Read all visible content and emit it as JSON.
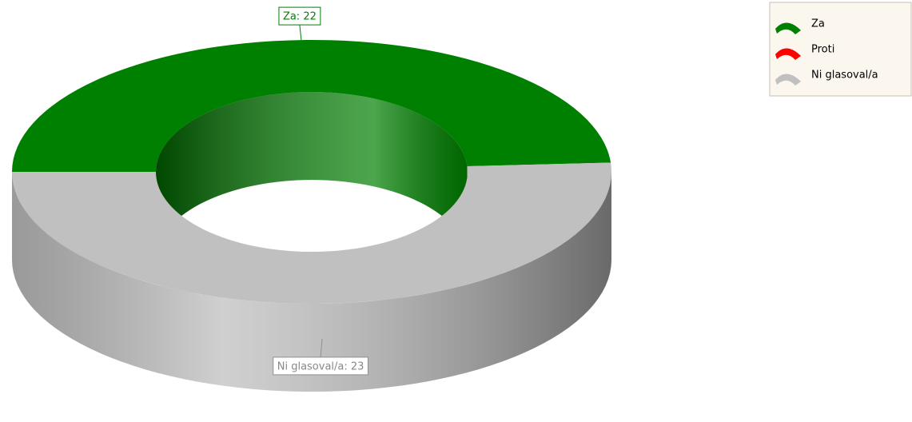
{
  "chart_data": {
    "type": "donut",
    "categories": [
      "Za",
      "Proti",
      "Ni glasoval/a"
    ],
    "values": [
      22,
      0,
      23
    ],
    "value_labels": [
      "Za: 22",
      null,
      "Ni glasoval/a: 23"
    ],
    "colors": [
      "#008000",
      "#ff0000",
      "#c0c0c0"
    ],
    "legend": "top-right"
  }
}
